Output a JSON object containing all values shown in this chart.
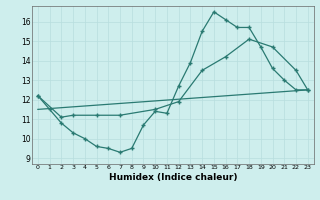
{
  "xlabel": "Humidex (Indice chaleur)",
  "bg_color": "#ceeeed",
  "line_color": "#2a7a72",
  "xlim": [
    -0.5,
    23.5
  ],
  "ylim": [
    8.7,
    16.8
  ],
  "yticks": [
    9,
    10,
    11,
    12,
    13,
    14,
    15,
    16
  ],
  "xticks": [
    0,
    1,
    2,
    3,
    4,
    5,
    6,
    7,
    8,
    9,
    10,
    11,
    12,
    13,
    14,
    15,
    16,
    17,
    18,
    19,
    20,
    21,
    22,
    23
  ],
  "line1_x": [
    0,
    1,
    2,
    3,
    4,
    5,
    6,
    7,
    8,
    9,
    10,
    11,
    12,
    13,
    14,
    15,
    16,
    17,
    18,
    19,
    20,
    21,
    22,
    23
  ],
  "line1_y": [
    12.2,
    11.5,
    10.8,
    10.3,
    10.0,
    9.6,
    9.5,
    9.3,
    9.5,
    10.7,
    11.4,
    11.3,
    12.7,
    13.9,
    15.5,
    16.5,
    16.1,
    15.7,
    15.7,
    14.7,
    13.6,
    13.0,
    12.5,
    12.5
  ],
  "line2_x": [
    0,
    2,
    3,
    5,
    7,
    10,
    12,
    14,
    16,
    18,
    20,
    22,
    23
  ],
  "line2_y": [
    12.2,
    11.1,
    11.2,
    11.2,
    11.2,
    11.5,
    11.9,
    13.5,
    14.2,
    15.1,
    14.7,
    13.5,
    12.5
  ],
  "line3_x": [
    0,
    23
  ],
  "line3_y": [
    11.5,
    12.5
  ]
}
